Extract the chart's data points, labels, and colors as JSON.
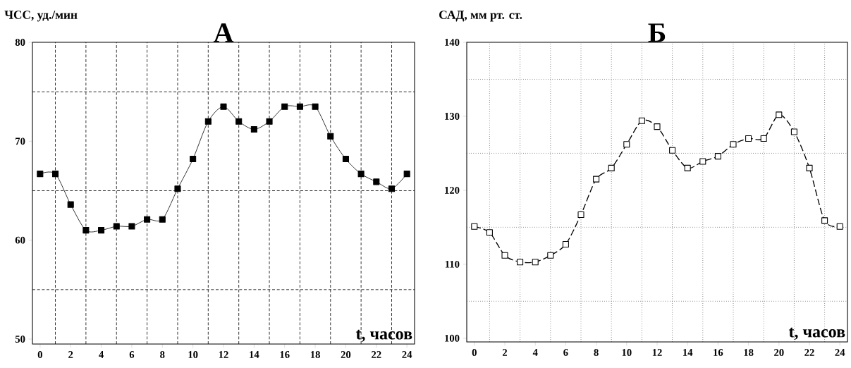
{
  "chart_data": [
    {
      "type": "line",
      "title": "А",
      "ylabel": "ЧСС, уд./мин",
      "xlabel": "t, часов",
      "grid": true,
      "marker": "square",
      "line_style": "solid",
      "x": [
        0,
        1,
        2,
        3,
        4,
        5,
        6,
        7,
        8,
        9,
        10,
        11,
        12,
        13,
        14,
        15,
        16,
        17,
        18,
        19,
        20,
        21,
        22,
        23,
        24
      ],
      "series": [
        {
          "color": "#000000",
          "values": [
            66.7,
            66.7,
            63.6,
            61.0,
            61.0,
            61.4,
            61.4,
            62.1,
            62.1,
            65.2,
            68.2,
            72.0,
            73.5,
            72.0,
            71.2,
            72.0,
            73.5,
            73.5,
            73.5,
            70.5,
            68.2,
            66.7,
            65.9,
            65.2,
            66.7
          ]
        }
      ],
      "xlim": [
        -0.5,
        24.5
      ],
      "ylim": [
        49.5,
        80
      ],
      "xticks": [
        0,
        2,
        4,
        6,
        8,
        10,
        12,
        14,
        16,
        18,
        20,
        22,
        24
      ],
      "yticks": [
        50,
        60,
        70,
        80
      ]
    },
    {
      "type": "line",
      "title": "Б",
      "ylabel": "САД, мм рт. ст.",
      "xlabel": "t, часов",
      "grid": true,
      "marker": "square",
      "line_style": "dashed",
      "x": [
        0,
        1,
        2,
        3,
        4,
        5,
        6,
        7,
        8,
        9,
        10,
        11,
        12,
        13,
        14,
        15,
        16,
        17,
        18,
        19,
        20,
        21,
        22,
        23,
        24
      ],
      "series": [
        {
          "color": "#000000",
          "values": [
            115.1,
            114.3,
            111.2,
            110.3,
            110.3,
            111.2,
            112.7,
            116.7,
            121.5,
            123.0,
            126.2,
            129.4,
            128.6,
            125.4,
            123.0,
            123.9,
            124.6,
            126.2,
            127.0,
            127.0,
            130.2,
            127.9,
            123.0,
            115.9,
            115.1
          ]
        }
      ],
      "xlim": [
        -0.5,
        24.5
      ],
      "ylim": [
        99.5,
        140
      ],
      "xticks": [
        0,
        2,
        4,
        6,
        8,
        10,
        12,
        14,
        16,
        18,
        20,
        22,
        24
      ],
      "yticks": [
        100,
        110,
        120,
        130,
        140
      ]
    }
  ]
}
